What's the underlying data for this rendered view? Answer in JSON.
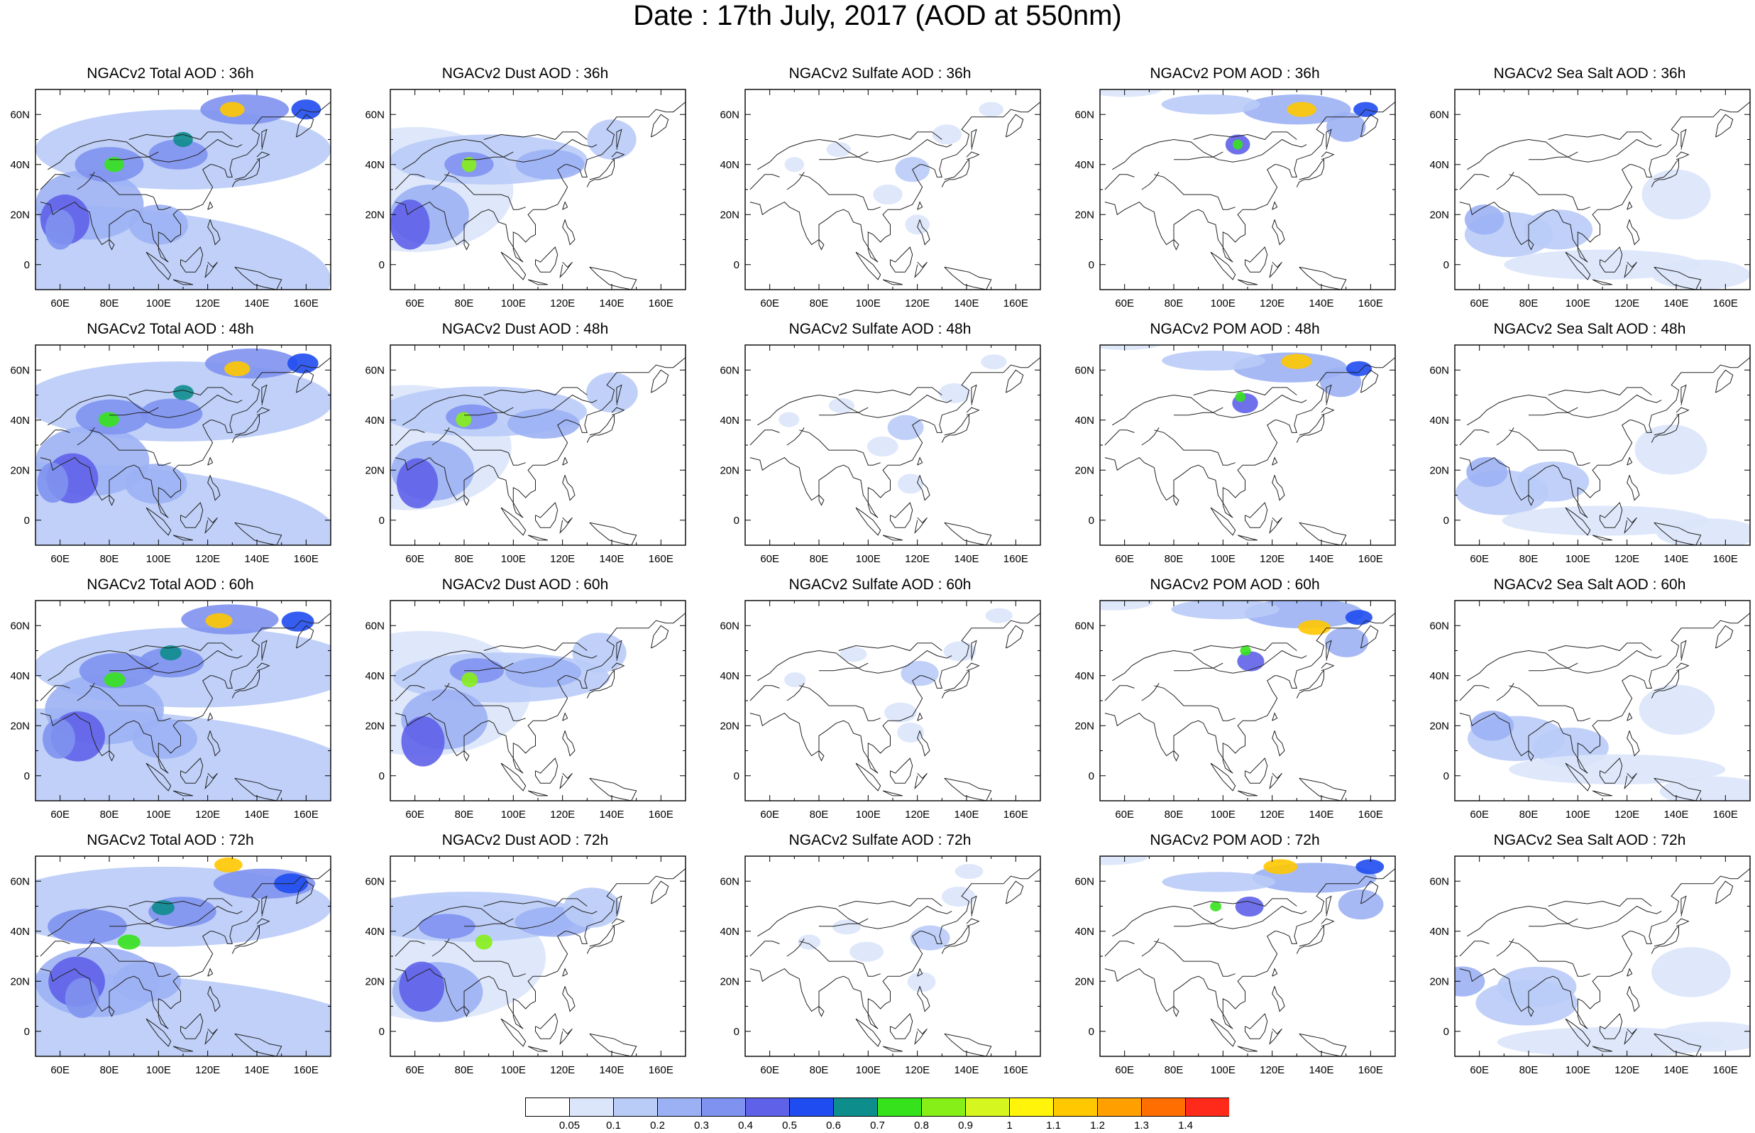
{
  "title": "Date : 17th July, 2017 (AOD at 550nm)",
  "axes": {
    "lon_labels": [
      "60E",
      "80E",
      "100E",
      "120E",
      "140E",
      "160E"
    ],
    "lat_labels": [
      "60N",
      "40N",
      "20N",
      "0"
    ]
  },
  "panels": [
    [
      "NGACv2 Total AOD : 36h",
      "NGACv2 Dust AOD : 36h",
      "NGACv2 Sulfate AOD : 36h",
      "NGACv2 POM AOD : 36h",
      "NGACv2 Sea Salt AOD : 36h"
    ],
    [
      "NGACv2 Total AOD : 48h",
      "NGACv2 Dust AOD : 48h",
      "NGACv2 Sulfate AOD : 48h",
      "NGACv2 POM AOD : 48h",
      "NGACv2 Sea Salt AOD : 48h"
    ],
    [
      "NGACv2 Total AOD : 60h",
      "NGACv2 Dust AOD : 60h",
      "NGACv2 Sulfate AOD : 60h",
      "NGACv2 POM AOD : 60h",
      "NGACv2 Sea Salt AOD : 60h"
    ],
    [
      "NGACv2 Total AOD : 72h",
      "NGACv2 Dust AOD : 72h",
      "NGACv2 Sulfate AOD : 72h",
      "NGACv2 POM AOD : 72h",
      "NGACv2 Sea Salt  AOD : 72h"
    ]
  ],
  "colorbar": {
    "labels": [
      "0.05",
      "0.1",
      "0.2",
      "0.3",
      "0.4",
      "0.5",
      "0.6",
      "0.7",
      "0.8",
      "0.9",
      "1",
      "1.1",
      "1.2",
      "1.3",
      "1.4"
    ],
    "colors": [
      "#ffffff",
      "#dbe6fb",
      "#b9cbf7",
      "#9cb1f4",
      "#7f92ef",
      "#5f62e9",
      "#1f4cf0",
      "#0e8d8d",
      "#36e21c",
      "#86ef18",
      "#d5f61e",
      "#fff40a",
      "#ffc800",
      "#ffa000",
      "#ff6e00",
      "#ff2a1a"
    ]
  }
}
